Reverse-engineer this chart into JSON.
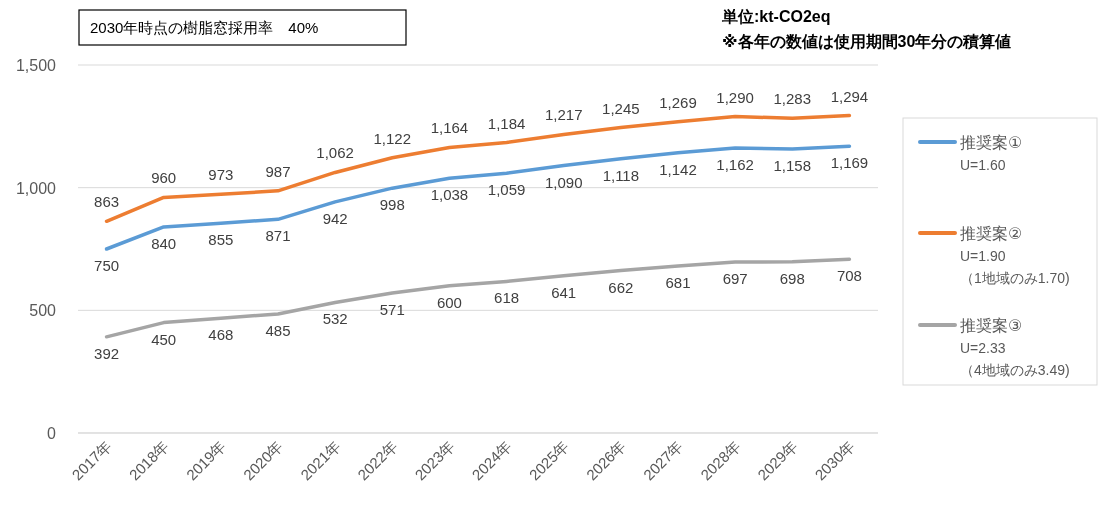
{
  "chart_data": {
    "type": "line",
    "title": "2030年時点の樹脂窓採用率　40%",
    "annotations": [
      "単位:kt-CO2eq",
      "※各年の数値は使用期間30年分の積算値"
    ],
    "categories": [
      "2017年",
      "2018年",
      "2019年",
      "2020年",
      "2021年",
      "2022年",
      "2023年",
      "2024年",
      "2025年",
      "2026年",
      "2027年",
      "2028年",
      "2029年",
      "2030年"
    ],
    "series": [
      {
        "name": "推奨案①\nU=1.60",
        "color": "#5b9bd5",
        "values": [
          750,
          840,
          855,
          871,
          942,
          998,
          1038,
          1059,
          1090,
          1118,
          1142,
          1162,
          1158,
          1169
        ],
        "value_labels": [
          "750",
          "840",
          "855",
          "871",
          "942",
          "998",
          "1,038",
          "1,059",
          "1,090",
          "1,118",
          "1,142",
          "1,162",
          "1,158",
          "1,169"
        ]
      },
      {
        "name": "推奨案②\nU=1.90\n（1地域のみ1.70)",
        "color": "#ed7d31",
        "values": [
          863,
          960,
          973,
          987,
          1062,
          1122,
          1164,
          1184,
          1217,
          1245,
          1269,
          1290,
          1283,
          1294
        ],
        "value_labels": [
          "863",
          "960",
          "973",
          "987",
          "1,062",
          "1,122",
          "1,164",
          "1,184",
          "1,217",
          "1,245",
          "1,269",
          "1,290",
          "1,283",
          "1,294"
        ]
      },
      {
        "name": "推奨案③\nU=2.33\n（4地域のみ3.49)",
        "color": "#a5a5a5",
        "values": [
          392,
          450,
          468,
          485,
          532,
          571,
          600,
          618,
          641,
          662,
          681,
          697,
          698,
          708
        ],
        "value_labels": [
          "392",
          "450",
          "468",
          "485",
          "532",
          "571",
          "600",
          "618",
          "641",
          "662",
          "681",
          "697",
          "698",
          "708"
        ]
      }
    ],
    "ylim": [
      0,
      1500
    ],
    "yticks": [
      0,
      500,
      {
        "value": 1000,
        "label": "1,000"
      },
      {
        "value": 1500,
        "label": "1,500"
      }
    ],
    "grid": "y",
    "legend": "right",
    "marker": "none",
    "line_style": "solid"
  }
}
